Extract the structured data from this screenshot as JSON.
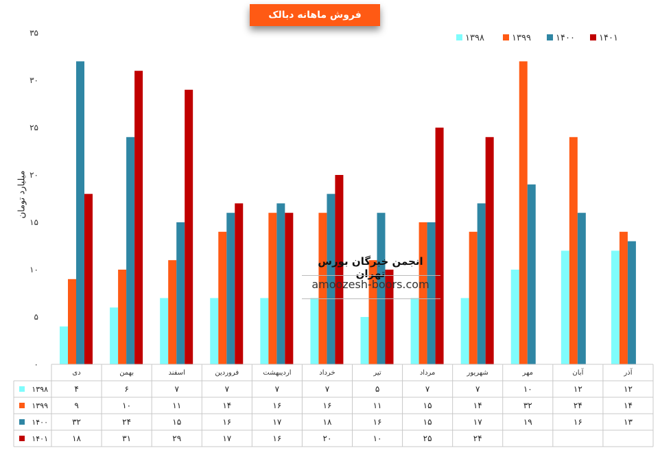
{
  "title": "فروش ماهانه دبالک",
  "watermark": {
    "line1": "انجمن خبرگان بورس تهران",
    "line2": "amoozesh-boors.com"
  },
  "colors": {
    "1398": "#7ffcfc",
    "1399": "#ff5a14",
    "1400": "#2f86a4",
    "1401": "#c00000"
  },
  "chart_data": {
    "type": "bar",
    "title": "فروش ماهانه دبالک",
    "ylabel": "میلیارد تومان",
    "xlabel": "",
    "ylim": [
      0,
      35
    ],
    "yticks": [
      "۰",
      "۵",
      "۱۰",
      "۱۵",
      "۲۰",
      "۲۵",
      "۳۰",
      "۳۵"
    ],
    "legend_position": "top-right",
    "categories": [
      "دی",
      "بهمن",
      "اسفند",
      "فروردین",
      "اردیبهشت",
      "خرداد",
      "تیر",
      "مرداد",
      "شهریور",
      "مهر",
      "آبان",
      "آذر"
    ],
    "series": [
      {
        "name": "۱۳۹۸",
        "values": [
          4,
          6,
          7,
          7,
          7,
          7,
          5,
          7,
          7,
          10,
          12,
          12
        ],
        "labels": [
          "۴",
          "۶",
          "۷",
          "۷",
          "۷",
          "۷",
          "۵",
          "۷",
          "۷",
          "۱۰",
          "۱۲",
          "۱۲"
        ]
      },
      {
        "name": "۱۳۹۹",
        "values": [
          9,
          10,
          11,
          14,
          16,
          16,
          11,
          15,
          14,
          32,
          24,
          14
        ],
        "labels": [
          "۹",
          "۱۰",
          "۱۱",
          "۱۴",
          "۱۶",
          "۱۶",
          "۱۱",
          "۱۵",
          "۱۴",
          "۳۲",
          "۲۴",
          "۱۴"
        ]
      },
      {
        "name": "۱۴۰۰",
        "values": [
          32,
          24,
          15,
          16,
          17,
          18,
          16,
          15,
          17,
          19,
          16,
          13
        ],
        "labels": [
          "۳۲",
          "۲۴",
          "۱۵",
          "۱۶",
          "۱۷",
          "۱۸",
          "۱۶",
          "۱۵",
          "۱۷",
          "۱۹",
          "۱۶",
          "۱۳"
        ]
      },
      {
        "name": "۱۴۰۱",
        "values": [
          18,
          31,
          29,
          17,
          16,
          20,
          10,
          25,
          24,
          null,
          null,
          null
        ],
        "labels": [
          "۱۸",
          "۳۱",
          "۲۹",
          "۱۷",
          "۱۶",
          "۲۰",
          "۱۰",
          "۲۵",
          "۲۴",
          "",
          "",
          ""
        ]
      }
    ]
  }
}
